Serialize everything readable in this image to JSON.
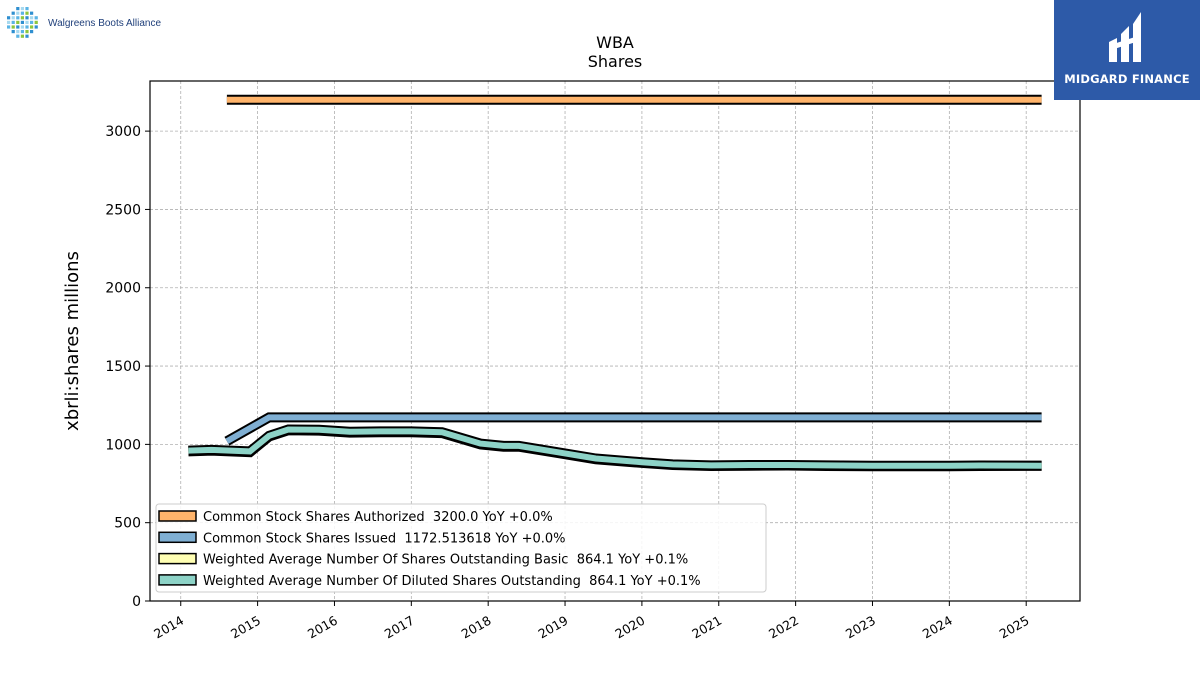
{
  "header": {
    "company_logo_text": "Walgreens Boots Alliance",
    "brand_name": "MIDGARD FINANCE"
  },
  "colors": {
    "authorized": "#ffb46b",
    "issued": "#7fafd3",
    "basic": "#ffffb3",
    "diluted": "#8dd3c7",
    "outline": "#000000",
    "grid": "#b0b0b0",
    "brand_bg": "#2d5aa8"
  },
  "chart_data": {
    "type": "line",
    "title": "WBA",
    "subtitle": "Shares",
    "ylabel": "xbrli:shares millions",
    "xlabel": "",
    "xlim": [
      2013.6,
      2025.7
    ],
    "ylim": [
      0,
      3320
    ],
    "x_ticks": [
      "2014",
      "2015",
      "2016",
      "2017",
      "2018",
      "2019",
      "2020",
      "2021",
      "2022",
      "2023",
      "2024",
      "2025"
    ],
    "y_ticks": [
      "0",
      "500",
      "1000",
      "1500",
      "2000",
      "2500",
      "3000"
    ],
    "grid": true,
    "legend_position": "lower-left",
    "series": [
      {
        "name": "Common Stock Shares Authorized",
        "legend": "Common Stock Shares Authorized  3200.0 YoY +0.0%",
        "color_key": "authorized",
        "x": [
          2014.6,
          2025.2
        ],
        "y": [
          3200,
          3200
        ]
      },
      {
        "name": "Common Stock Shares Issued",
        "legend": "Common Stock Shares Issued  1172.513618 YoY +0.0%",
        "color_key": "issued",
        "x": [
          2014.6,
          2015.15,
          2025.2
        ],
        "y": [
          1020,
          1172.5,
          1172.5
        ]
      },
      {
        "name": "Weighted Average Number Of Shares Outstanding Basic",
        "legend": "Weighted Average Number Of Shares Outstanding Basic  864.1 YoY +0.1%",
        "color_key": "basic",
        "x": [
          2014.1,
          2014.4,
          2014.9,
          2015.15,
          2015.4,
          2015.8,
          2016.2,
          2016.6,
          2017.0,
          2017.4,
          2017.9,
          2018.2,
          2018.4,
          2018.9,
          2019.4,
          2020.0,
          2020.4,
          2020.9,
          2021.4,
          2021.9,
          2022.4,
          2023.0,
          2023.4,
          2024.0,
          2024.4,
          2025.2
        ],
        "y": [
          955,
          960,
          950,
          1050,
          1090,
          1088,
          1075,
          1078,
          1078,
          1072,
          1000,
          985,
          985,
          945,
          905,
          882,
          868,
          862,
          864,
          865,
          862,
          860,
          860,
          860,
          862,
          864
        ]
      },
      {
        "name": "Weighted Average Number Of Diluted Shares Outstanding",
        "legend": "Weighted Average Number Of Diluted Shares Outstanding  864.1 YoY +0.1%",
        "color_key": "diluted",
        "x": [
          2014.1,
          2014.4,
          2014.9,
          2015.15,
          2015.4,
          2015.8,
          2016.2,
          2016.6,
          2017.0,
          2017.4,
          2017.9,
          2018.2,
          2018.4,
          2018.9,
          2019.4,
          2020.0,
          2020.4,
          2020.9,
          2021.4,
          2021.9,
          2022.4,
          2023.0,
          2023.4,
          2024.0,
          2024.4,
          2025.2
        ],
        "y": [
          960,
          965,
          955,
          1055,
          1095,
          1093,
          1080,
          1083,
          1083,
          1078,
          1005,
          990,
          990,
          950,
          910,
          886,
          872,
          866,
          868,
          868,
          866,
          864,
          864,
          864,
          865,
          864
        ]
      }
    ]
  }
}
